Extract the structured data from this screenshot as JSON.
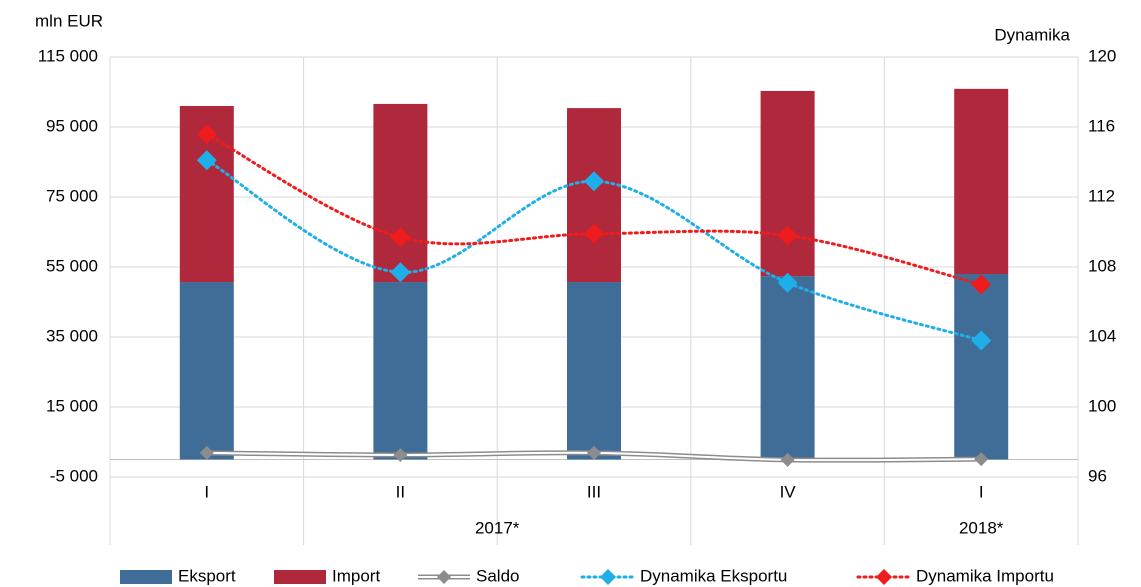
{
  "chart_data": {
    "type": "bar",
    "y_label": "mln EUR",
    "y2_label": "Dynamika",
    "categories": [
      "I",
      "II",
      "III",
      "IV",
      "I"
    ],
    "groups": [
      {
        "label": "2017*",
        "span": 4
      },
      {
        "label": "2018*",
        "span": 1
      }
    ],
    "ylim": [
      -5000,
      115000
    ],
    "yticks": [
      {
        "value": -5000,
        "label": "-5 000"
      },
      {
        "value": 15000,
        "label": "15 000"
      },
      {
        "value": 35000,
        "label": "35 000"
      },
      {
        "value": 55000,
        "label": "55 000"
      },
      {
        "value": 75000,
        "label": "75 000"
      },
      {
        "value": 95000,
        "label": "95 000"
      },
      {
        "value": 115000,
        "label": "115 000"
      }
    ],
    "y2lim": [
      96,
      120
    ],
    "y2ticks": [
      96,
      100,
      104,
      108,
      112,
      116,
      120
    ],
    "grid": true,
    "series": [
      {
        "name": "Eksport",
        "type": "bar",
        "stack": true,
        "color": "#406d98",
        "values": [
          50700,
          50700,
          50700,
          52400,
          53000
        ]
      },
      {
        "name": "Import",
        "type": "bar",
        "stack": true,
        "color": "#b0283c",
        "values": [
          50300,
          50900,
          49700,
          52900,
          52900
        ]
      },
      {
        "name": "Saldo",
        "type": "line",
        "style": "double",
        "color": "#8c8c8c",
        "values": [
          1900,
          1300,
          1900,
          -100,
          100
        ]
      },
      {
        "name": "Dynamika Eksportu",
        "type": "line",
        "style": "dotted",
        "axis": "y2",
        "color": "#1eaee8",
        "values": [
          114.1,
          107.7,
          112.9,
          107.1,
          103.8
        ]
      },
      {
        "name": "Dynamika Importu",
        "type": "line",
        "style": "dotted",
        "axis": "y2",
        "color": "#ee1c1c",
        "values": [
          115.6,
          109.7,
          109.9,
          109.8,
          107.0
        ]
      }
    ]
  }
}
